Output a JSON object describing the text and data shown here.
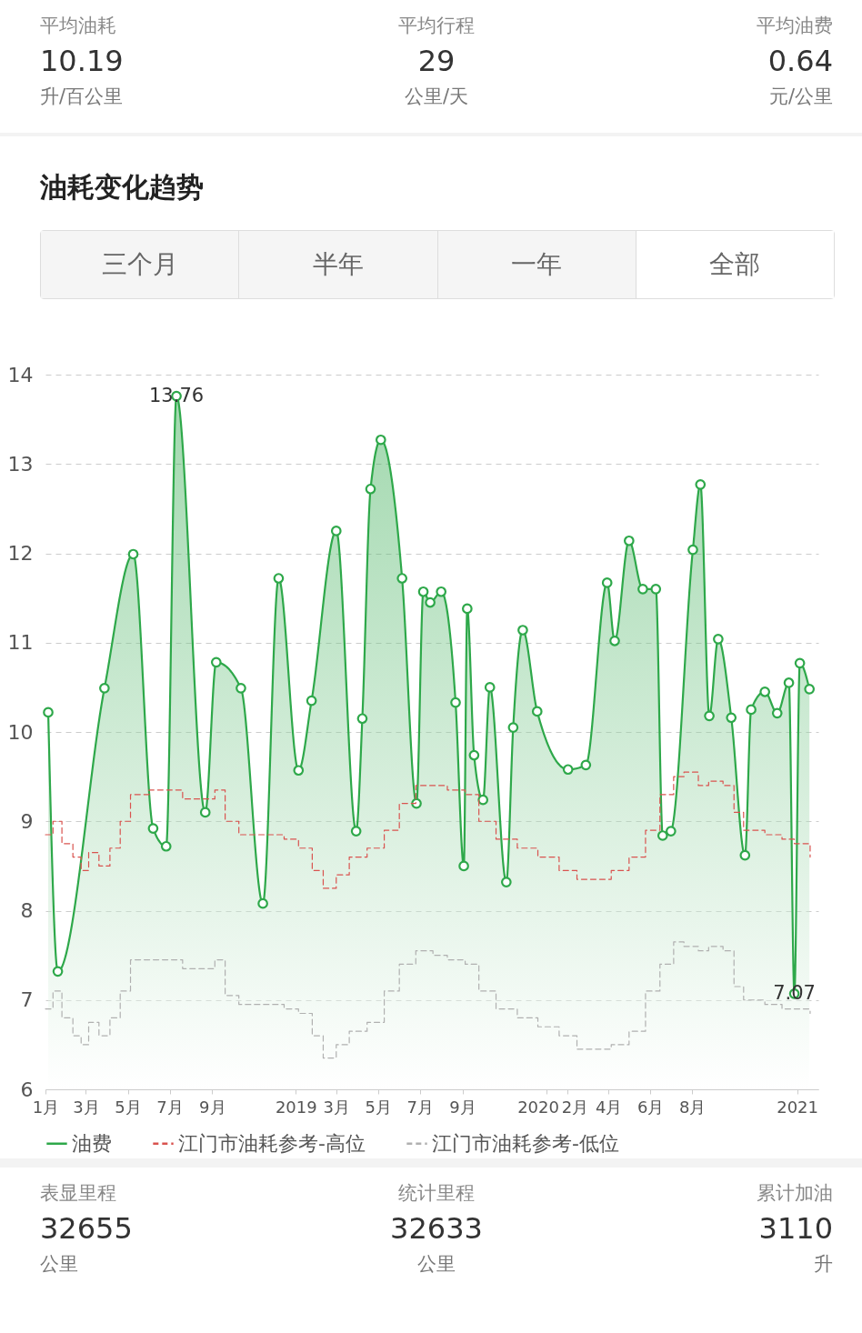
{
  "chart_data": [
    {
      "type": "other",
      "annotations": [
        "平均油耗",
        "10.19",
        "升/百公里",
        "平均行程",
        "29",
        "公里/天",
        "平均油费",
        "0.64",
        "元/公里"
      ]
    },
    {
      "type": "area",
      "title": "油耗变化趋势",
      "annotations": [
        "三个月",
        "半年",
        "一年",
        "全部",
        {
          "text": "13.76",
          "x": "2018-07-11",
          "y": 13.76
        },
        {
          "text": "7.07",
          "x": "2020-12-28",
          "y": 7.07
        }
      ],
      "xlim": [
        "2018-01-01",
        "2021-02-01"
      ],
      "xticks": [
        {
          "value": "2018-01",
          "label": "1月"
        },
        {
          "value": "2018-03",
          "label": "3月"
        },
        {
          "value": "2018-05",
          "label": "5月"
        },
        {
          "value": "2018-07",
          "label": "7月"
        },
        {
          "value": "2018-09",
          "label": "9月"
        },
        {
          "value": "2019-01",
          "label": "2019"
        },
        {
          "value": "2019-03",
          "label": "3月"
        },
        {
          "value": "2019-05",
          "label": "5月"
        },
        {
          "value": "2019-07",
          "label": "7月"
        },
        {
          "value": "2019-09",
          "label": "9月"
        },
        {
          "value": "2020-01",
          "label": "2020"
        },
        {
          "value": "2020-02",
          "label": "2月"
        },
        {
          "value": "2020-04",
          "label": "4月"
        },
        {
          "value": "2020-06",
          "label": "6月"
        },
        {
          "value": "2020-08",
          "label": "8月"
        },
        {
          "value": "2021-01",
          "label": "2021"
        }
      ],
      "ylim": [
        6,
        14
      ],
      "yticks": [
        6,
        7,
        8,
        9,
        10,
        11,
        12,
        13,
        14
      ],
      "grid": "y",
      "legend": "bottom",
      "series": [
        {
          "name": "油费",
          "color": "#2ea84a",
          "marker": "circle",
          "x": [
            "2018-01-05",
            "2018-01-19",
            "2018-03-28",
            "2018-05-09",
            "2018-06-07",
            "2018-06-26",
            "2018-07-11",
            "2018-08-22",
            "2018-09-07",
            "2018-10-13",
            "2018-11-14",
            "2018-12-07",
            "2019-01-05",
            "2019-01-24",
            "2019-03-01",
            "2019-03-30",
            "2019-04-08",
            "2019-04-20",
            "2019-05-05",
            "2019-06-05",
            "2019-06-26",
            "2019-07-06",
            "2019-07-16",
            "2019-08-01",
            "2019-08-22",
            "2019-09-03",
            "2019-09-08",
            "2019-09-18",
            "2019-10-01",
            "2019-10-11",
            "2019-11-04",
            "2019-11-14",
            "2019-11-28",
            "2019-12-19",
            "2020-02-02",
            "2020-02-28",
            "2020-03-30",
            "2020-04-10",
            "2020-05-01",
            "2020-05-21",
            "2020-06-09",
            "2020-06-19",
            "2020-07-01",
            "2020-08-02",
            "2020-08-13",
            "2020-08-26",
            "2020-09-08",
            "2020-09-27",
            "2020-10-17",
            "2020-10-26",
            "2020-11-15",
            "2020-12-03",
            "2020-12-20",
            "2020-12-28",
            "2021-01-05",
            "2021-01-19"
          ],
          "values": [
            10.22,
            7.32,
            10.49,
            11.99,
            8.92,
            8.72,
            13.76,
            9.1,
            10.78,
            10.49,
            8.08,
            11.72,
            9.57,
            10.35,
            12.25,
            8.89,
            10.15,
            12.72,
            13.27,
            11.72,
            9.2,
            11.57,
            11.45,
            11.57,
            10.33,
            8.5,
            11.38,
            9.74,
            9.24,
            10.5,
            8.32,
            10.05,
            11.14,
            10.23,
            9.58,
            9.63,
            11.67,
            11.02,
            12.14,
            11.6,
            11.6,
            8.84,
            8.89,
            12.04,
            12.77,
            10.18,
            11.04,
            10.16,
            8.62,
            10.25,
            10.45,
            10.21,
            10.55,
            7.07,
            10.77,
            10.48
          ]
        },
        {
          "name": "江门市油耗参考-高位",
          "type": "step",
          "color": "#d9534f",
          "line_style": "dashed",
          "x": [
            "2018-01-01",
            "2018-01-12",
            "2018-01-25",
            "2018-02-10",
            "2018-02-22",
            "2018-03-05",
            "2018-03-20",
            "2018-04-05",
            "2018-04-20",
            "2018-05-05",
            "2018-06-01",
            "2018-07-01",
            "2018-07-20",
            "2018-08-15",
            "2018-09-05",
            "2018-09-20",
            "2018-10-10",
            "2018-11-15",
            "2018-12-15",
            "2019-01-05",
            "2019-01-25",
            "2019-02-10",
            "2019-03-01",
            "2019-03-20",
            "2019-04-15",
            "2019-05-10",
            "2019-06-01",
            "2019-06-25",
            "2019-07-20",
            "2019-08-10",
            "2019-09-05",
            "2019-09-25",
            "2019-10-20",
            "2019-11-20",
            "2019-12-20",
            "2020-01-20",
            "2020-02-15",
            "2020-03-10",
            "2020-04-05",
            "2020-05-01",
            "2020-05-25",
            "2020-06-15",
            "2020-07-05",
            "2020-07-20",
            "2020-08-10",
            "2020-08-25",
            "2020-09-15",
            "2020-10-01",
            "2020-10-15",
            "2020-11-15",
            "2020-12-10",
            "2020-12-28",
            "2021-01-20"
          ],
          "values": [
            8.85,
            9.0,
            8.75,
            8.6,
            8.45,
            8.65,
            8.5,
            8.7,
            9.0,
            9.3,
            9.35,
            9.35,
            9.25,
            9.25,
            9.35,
            9.0,
            8.85,
            8.85,
            8.8,
            8.7,
            8.45,
            8.25,
            8.4,
            8.6,
            8.7,
            8.9,
            9.2,
            9.4,
            9.4,
            9.35,
            9.3,
            9.0,
            8.8,
            8.7,
            8.6,
            8.45,
            8.35,
            8.35,
            8.45,
            8.6,
            8.9,
            9.3,
            9.5,
            9.55,
            9.4,
            9.45,
            9.4,
            9.1,
            8.9,
            8.85,
            8.8,
            8.75,
            8.6
          ]
        },
        {
          "name": "江门市油耗参考-低位",
          "type": "step",
          "color": "#b0b0b0",
          "line_style": "dashed",
          "x": [
            "2018-01-01",
            "2018-01-12",
            "2018-01-25",
            "2018-02-10",
            "2018-02-22",
            "2018-03-05",
            "2018-03-20",
            "2018-04-05",
            "2018-04-20",
            "2018-05-05",
            "2018-06-01",
            "2018-07-01",
            "2018-07-20",
            "2018-08-15",
            "2018-09-05",
            "2018-09-20",
            "2018-10-10",
            "2018-11-15",
            "2018-12-15",
            "2019-01-05",
            "2019-01-25",
            "2019-02-10",
            "2019-03-01",
            "2019-03-20",
            "2019-04-15",
            "2019-05-10",
            "2019-06-01",
            "2019-06-25",
            "2019-07-20",
            "2019-08-10",
            "2019-09-05",
            "2019-09-25",
            "2019-10-20",
            "2019-11-20",
            "2019-12-20",
            "2020-01-20",
            "2020-02-15",
            "2020-03-10",
            "2020-04-05",
            "2020-05-01",
            "2020-05-25",
            "2020-06-15",
            "2020-07-05",
            "2020-07-20",
            "2020-08-10",
            "2020-08-25",
            "2020-09-15",
            "2020-10-01",
            "2020-10-15",
            "2020-11-15",
            "2020-12-10",
            "2020-12-28",
            "2021-01-20"
          ],
          "values": [
            6.9,
            7.1,
            6.8,
            6.6,
            6.5,
            6.75,
            6.6,
            6.8,
            7.1,
            7.45,
            7.45,
            7.45,
            7.35,
            7.35,
            7.45,
            7.05,
            6.95,
            6.95,
            6.9,
            6.85,
            6.6,
            6.35,
            6.5,
            6.65,
            6.75,
            7.1,
            7.4,
            7.55,
            7.5,
            7.45,
            7.4,
            7.1,
            6.9,
            6.8,
            6.7,
            6.6,
            6.45,
            6.45,
            6.5,
            6.65,
            7.1,
            7.4,
            7.65,
            7.6,
            7.55,
            7.6,
            7.55,
            7.15,
            7.0,
            6.95,
            6.9,
            6.9,
            6.85
          ]
        }
      ]
    },
    {
      "type": "other",
      "annotations": [
        "表显里程",
        "32655",
        "公里",
        "统计里程",
        "32633",
        "公里",
        "累计加油",
        "3110",
        "升"
      ]
    }
  ]
}
